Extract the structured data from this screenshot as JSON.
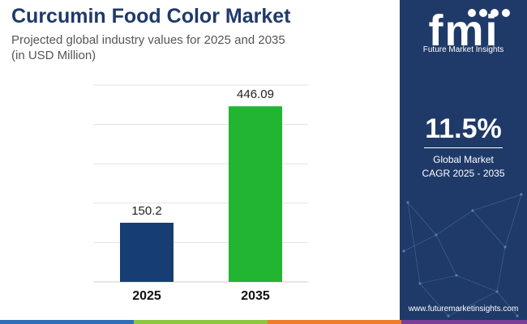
{
  "header": {
    "title": "Curcumin Food Color Market",
    "subtitle_line1": "Projected global industry values for 2025 and 2035",
    "subtitle_line2": "(in USD Million)"
  },
  "chart_data": {
    "type": "bar",
    "title": "Curcumin Food Color Market",
    "subtitle": "Projected global industry values for 2025 and 2035 (in USD Million)",
    "categories": [
      "2025",
      "2035"
    ],
    "values": [
      150.2,
      446.09
    ],
    "value_labels": [
      "150.2",
      "446.09"
    ],
    "bar_colors": [
      "#163e74",
      "#21b532"
    ],
    "xlabel": "",
    "ylabel": "",
    "ylim": [
      0,
      500
    ],
    "grid": true,
    "legend": "none"
  },
  "side_panel": {
    "logo_text": "fmi",
    "logo_subtitle": "Future Market Insights",
    "cagr_value": "11.5%",
    "cagr_label_line1": "Global Market",
    "cagr_label_line2": "CAGR 2025 - 2035",
    "website": "www.futuremarketinsights.com"
  },
  "colors": {
    "title": "#1f3a68",
    "panel": "#1f3a68",
    "stripes": [
      "#2f6fba",
      "#8dc63f",
      "#f07c2a",
      "#7b3f98"
    ]
  }
}
